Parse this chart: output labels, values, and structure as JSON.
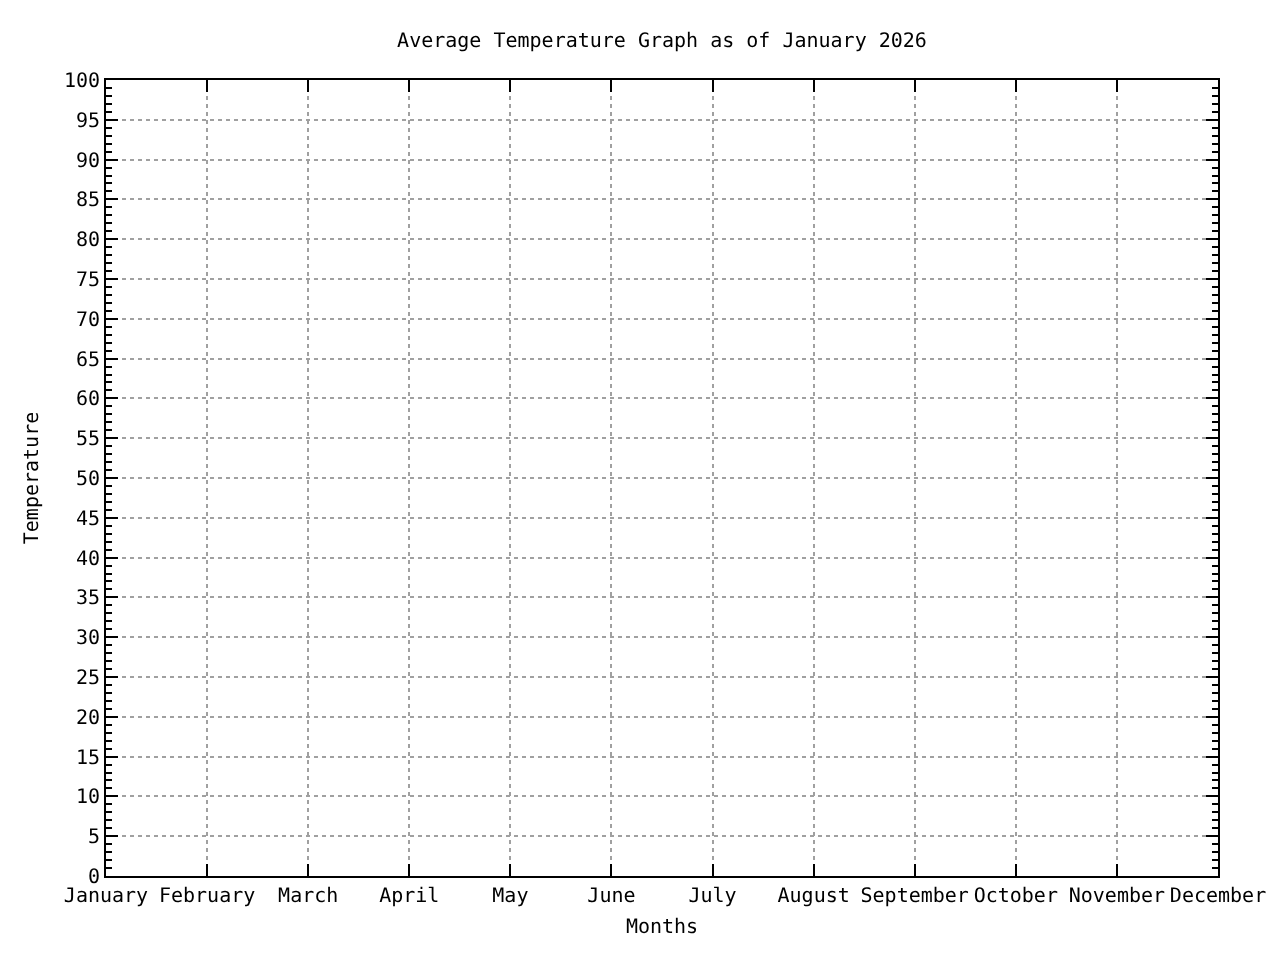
{
  "chart_data": {
    "type": "line",
    "title": "Average Temperature Graph as of January 2026",
    "xlabel": "Months",
    "ylabel": "Temperature",
    "categories": [
      "January",
      "February",
      "March",
      "April",
      "May",
      "June",
      "July",
      "August",
      "September",
      "October",
      "November",
      "December"
    ],
    "values": [
      null,
      null,
      null,
      null,
      null,
      null,
      null,
      null,
      null,
      null,
      null,
      null
    ],
    "ylim": [
      0,
      100
    ],
    "yticks": [
      0,
      5,
      10,
      15,
      20,
      25,
      30,
      35,
      40,
      45,
      50,
      55,
      60,
      65,
      70,
      75,
      80,
      85,
      90,
      95,
      100
    ],
    "grid": true
  }
}
